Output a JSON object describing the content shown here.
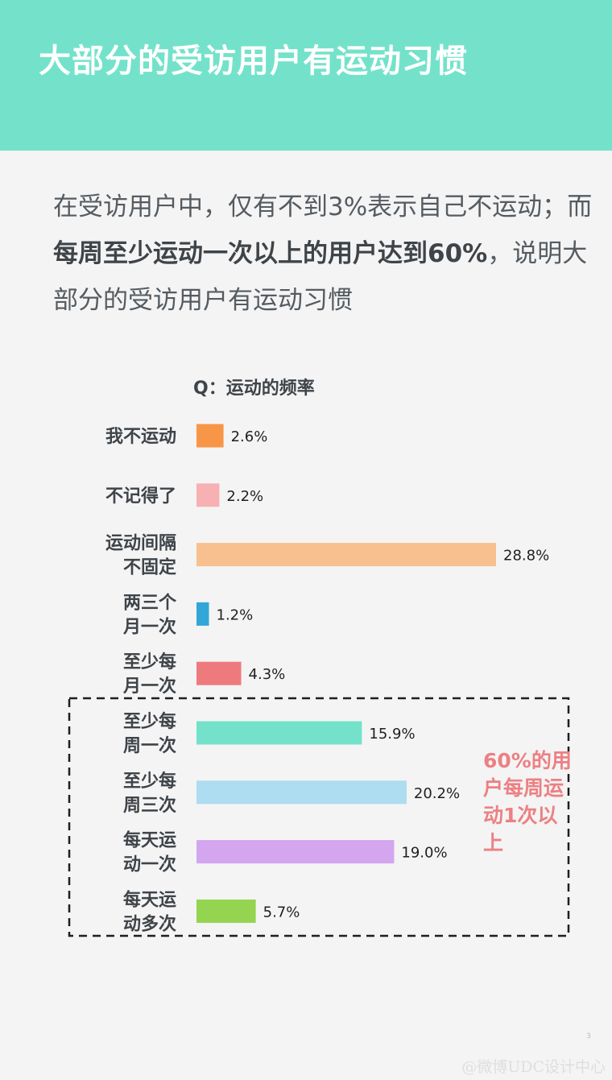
{
  "header": {
    "title": "大部分的受访用户有运动习惯"
  },
  "intro": {
    "part1": "在受访用户中，仅有不到3%表示自己不运动；",
    "part2_prefix": "而",
    "part2_bold": "每周至少运动一次以上的用户达到60%",
    "part2_suffix": "，说明大部分的受访用户有运动习惯"
  },
  "chart_data": {
    "type": "bar",
    "orientation": "horizontal",
    "title": "Q：运动的频率",
    "categories": [
      "我不运动",
      "不记得了",
      "运动间隔不固定",
      "两三个月一次",
      "至少每月一次",
      "至少每周一次",
      "至少每周三次",
      "每天运动一次",
      "每天运动多次"
    ],
    "values": [
      2.6,
      2.2,
      28.8,
      1.2,
      4.3,
      15.9,
      20.2,
      19.0,
      5.7
    ],
    "value_labels": [
      "2.6%",
      "2.2%",
      "28.8%",
      "1.2%",
      "4.3%",
      "15.9%",
      "20.2%",
      "19.0%",
      "5.7%"
    ],
    "label_lines": [
      [
        "我不运动"
      ],
      [
        "不记得了"
      ],
      [
        "运动间隔",
        "不固定"
      ],
      [
        "两三个",
        "月一次"
      ],
      [
        "至少每",
        "月一次"
      ],
      [
        "至少每",
        "周一次"
      ],
      [
        "至少每",
        "周三次"
      ],
      [
        "每天运",
        "动一次"
      ],
      [
        "每天运",
        "动多次"
      ]
    ],
    "colors": [
      "#f79646",
      "#f8b1b3",
      "#f8c08f",
      "#33a6d8",
      "#ef7a7e",
      "#74e2ca",
      "#aedcf0",
      "#d3a6ef",
      "#95d451"
    ],
    "unit": "%",
    "highlight": {
      "categories_from_index": 5,
      "note": "60%的用户每周运动1次以上",
      "style": "dashed box"
    },
    "grid": false,
    "legend": false
  },
  "footer": {
    "page_number": "3",
    "watermark": "@微博UDC设计中心"
  }
}
